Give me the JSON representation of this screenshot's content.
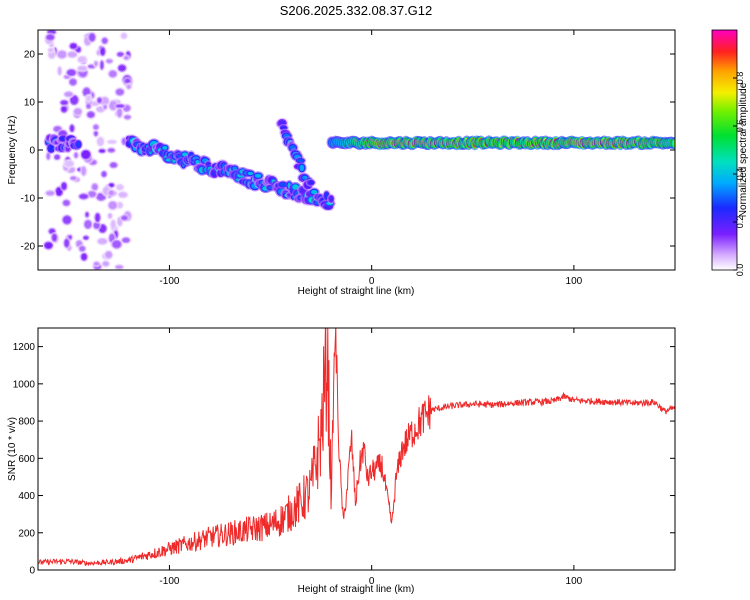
{
  "figure_title": "S206.2025.332.08.37.G12",
  "chart_data": [
    {
      "type": "heatmap",
      "title": "S206.2025.332.08.37.G12",
      "xlabel": "Height of straight line (km)",
      "ylabel": "Frequency (Hz)",
      "xlim": [
        -165,
        150
      ],
      "ylim": [
        -25,
        25
      ],
      "x_ticks": [
        -100,
        0,
        100
      ],
      "y_ticks": [
        -20,
        -10,
        0,
        10,
        20
      ],
      "x_tick_labels": [
        "-100",
        "0",
        "100"
      ],
      "y_tick_labels": [
        "-20",
        "-10",
        "0",
        "10",
        "20"
      ],
      "colorbar": {
        "label": "Normalized spectral amplitude",
        "range": [
          0,
          1
        ],
        "ticks": [
          0.0,
          0.2,
          0.4,
          0.6,
          0.8
        ],
        "tick_labels": [
          "0.0",
          "0.2",
          "0.4",
          "0.6",
          "0.8"
        ],
        "colormap": "rainbow (white-violet-blue-cyan-green-yellow-red-magenta)"
      },
      "features": [
        {
          "x_range": [
            -160,
            -120
          ],
          "freq_range": [
            -25,
            25
          ],
          "peak_amplitude": 0.15
        },
        {
          "x_range": [
            -160,
            -145
          ],
          "frequency": 1.5,
          "peak_amplitude": 0.35
        },
        {
          "x_range": [
            -120,
            -20
          ],
          "freq_start": 1.5,
          "freq_end": -11,
          "peak_amplitude": 0.45
        },
        {
          "x_range": [
            -45,
            -30
          ],
          "freq_start": 5,
          "freq_end": -8,
          "peak_amplitude": 0.4
        },
        {
          "x_range": [
            -20,
            150
          ],
          "frequency": 1.5,
          "peak_amplitude": 0.95
        }
      ]
    },
    {
      "type": "line",
      "xlabel": "Height of straight line (km)",
      "ylabel": "SNR (10 * v/v)",
      "xlim": [
        -165,
        150
      ],
      "ylim": [
        0,
        1300
      ],
      "x_ticks": [
        -100,
        0,
        100
      ],
      "y_ticks": [
        0,
        200,
        400,
        600,
        800,
        1000,
        1200
      ],
      "x_tick_labels": [
        "-100",
        "0",
        "100"
      ],
      "y_tick_labels": [
        "0",
        "200",
        "400",
        "600",
        "800",
        "1000",
        "1200"
      ],
      "line_color": "#ee2a2a",
      "series": [
        {
          "x": [
            -165,
            -150,
            -140,
            -130,
            -120,
            -110,
            -100,
            -90,
            -80,
            -70,
            -60,
            -50,
            -45,
            -40,
            -35,
            -30,
            -25,
            -22,
            -20,
            -18,
            -16,
            -14,
            -12,
            -10,
            -8,
            -6,
            -4,
            -2,
            0,
            5,
            10,
            12,
            15,
            20,
            25,
            30,
            40,
            50,
            60,
            70,
            80,
            90,
            95,
            100,
            110,
            120,
            130,
            140,
            145,
            150
          ],
          "values": [
            40,
            45,
            35,
            40,
            50,
            80,
            110,
            140,
            170,
            190,
            210,
            230,
            260,
            300,
            350,
            420,
            700,
            1150,
            400,
            1300,
            600,
            250,
            450,
            700,
            350,
            550,
            650,
            480,
            520,
            560,
            240,
            480,
            640,
            730,
            800,
            860,
            880,
            890,
            885,
            895,
            900,
            905,
            930,
            910,
            905,
            900,
            895,
            900,
            850,
            870
          ]
        }
      ]
    }
  ]
}
